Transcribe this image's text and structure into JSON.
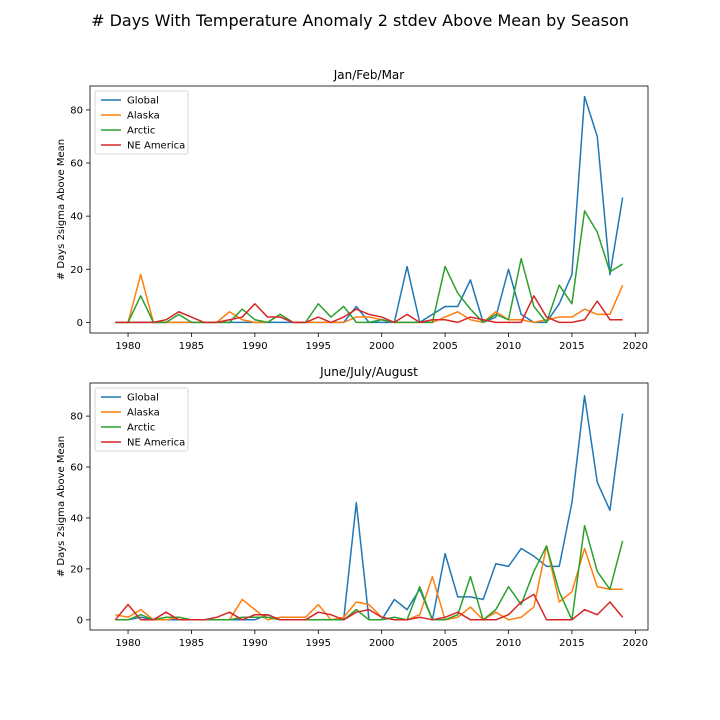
{
  "figure": {
    "suptitle": "# Days With Temperature Anomaly 2 stdev Above Mean by Season"
  },
  "chart_data": [
    {
      "type": "line",
      "title": "Jan/Feb/Mar",
      "xlabel": "",
      "ylabel": "# Days 2sigma Above Mean",
      "xlim": [
        1977,
        2021
      ],
      "ylim": [
        -4,
        89
      ],
      "xticks": [
        1980,
        1985,
        1990,
        1995,
        2000,
        2005,
        2010,
        2015,
        2020
      ],
      "yticks": [
        0,
        20,
        40,
        60,
        80
      ],
      "legend_position": "upper left",
      "x": [
        1979,
        1980,
        1981,
        1982,
        1983,
        1984,
        1985,
        1986,
        1987,
        1988,
        1989,
        1990,
        1991,
        1992,
        1993,
        1994,
        1995,
        1996,
        1997,
        1998,
        1999,
        2000,
        2001,
        2002,
        2003,
        2004,
        2005,
        2006,
        2007,
        2008,
        2009,
        2010,
        2011,
        2012,
        2013,
        2014,
        2015,
        2016,
        2017,
        2018,
        2019
      ],
      "series": [
        {
          "name": "Global",
          "color": "#1f77b4",
          "values": [
            0,
            0,
            0,
            0,
            0,
            0,
            0,
            0,
            0,
            0,
            0,
            0,
            0,
            0,
            0,
            0,
            0,
            0,
            0,
            6,
            0,
            0,
            0,
            21,
            0,
            3,
            6,
            6,
            16,
            0,
            2,
            20,
            3,
            0,
            0,
            7,
            18,
            85,
            70,
            18,
            47
          ]
        },
        {
          "name": "Alaska",
          "color": "#ff7f0e",
          "values": [
            0,
            0,
            18,
            0,
            0,
            0,
            0,
            0,
            0,
            4,
            1,
            0,
            0,
            3,
            0,
            0,
            0,
            0,
            0,
            2,
            2,
            1,
            0,
            0,
            0,
            0,
            2,
            4,
            1,
            0,
            4,
            1,
            1,
            0,
            1,
            2,
            2,
            5,
            3,
            3,
            14
          ]
        },
        {
          "name": "Arctic",
          "color": "#2ca02c",
          "values": [
            0,
            0,
            10,
            0,
            0,
            3,
            0,
            0,
            0,
            0,
            5,
            1,
            0,
            3,
            0,
            0,
            7,
            2,
            6,
            0,
            0,
            1,
            0,
            0,
            0,
            0,
            21,
            11,
            5,
            0,
            3,
            1,
            24,
            6,
            0,
            14,
            7,
            42,
            34,
            19,
            22
          ]
        },
        {
          "name": "NE America",
          "color": "#d62728",
          "values": [
            0,
            0,
            0,
            0,
            1,
            4,
            2,
            0,
            0,
            1,
            2,
            7,
            2,
            2,
            0,
            0,
            2,
            0,
            2,
            5,
            3,
            2,
            0,
            3,
            0,
            1,
            1,
            0,
            2,
            1,
            0,
            0,
            0,
            10,
            2,
            0,
            0,
            1,
            8,
            1,
            1
          ]
        }
      ]
    },
    {
      "type": "line",
      "title": "June/July/August",
      "xlabel": "",
      "ylabel": "# Days 2sigma Above Mean",
      "xlim": [
        1977,
        2021
      ],
      "ylim": [
        -4,
        93
      ],
      "xticks": [
        1980,
        1985,
        1990,
        1995,
        2000,
        2005,
        2010,
        2015,
        2020
      ],
      "yticks": [
        0,
        20,
        40,
        60,
        80
      ],
      "legend_position": "upper left",
      "x": [
        1979,
        1980,
        1981,
        1982,
        1983,
        1984,
        1985,
        1986,
        1987,
        1988,
        1989,
        1990,
        1991,
        1992,
        1993,
        1994,
        1995,
        1996,
        1997,
        1998,
        1999,
        2000,
        2001,
        2002,
        2003,
        2004,
        2005,
        2006,
        2007,
        2008,
        2009,
        2010,
        2011,
        2012,
        2013,
        2014,
        2015,
        2016,
        2017,
        2018,
        2019
      ],
      "series": [
        {
          "name": "Global",
          "color": "#1f77b4",
          "values": [
            0,
            0,
            1,
            0,
            0,
            0,
            0,
            0,
            0,
            0,
            0,
            0,
            2,
            0,
            0,
            0,
            0,
            0,
            0,
            46,
            0,
            0,
            8,
            4,
            12,
            0,
            26,
            9,
            9,
            8,
            22,
            21,
            28,
            25,
            21,
            21,
            46,
            88,
            54,
            43,
            81
          ]
        },
        {
          "name": "Alaska",
          "color": "#ff7f0e",
          "values": [
            2,
            1,
            4,
            0,
            0,
            1,
            0,
            0,
            0,
            0,
            8,
            4,
            0,
            1,
            1,
            1,
            6,
            0,
            1,
            7,
            6,
            1,
            0,
            0,
            2,
            17,
            0,
            1,
            5,
            0,
            3,
            0,
            1,
            5,
            29,
            7,
            11,
            28,
            13,
            12,
            12
          ]
        },
        {
          "name": "Arctic",
          "color": "#2ca02c",
          "values": [
            0,
            0,
            2,
            0,
            1,
            1,
            0,
            0,
            0,
            0,
            1,
            1,
            1,
            0,
            0,
            0,
            0,
            0,
            0,
            4,
            0,
            0,
            1,
            0,
            13,
            0,
            0,
            2,
            17,
            0,
            4,
            13,
            6,
            19,
            29,
            11,
            0,
            37,
            19,
            12,
            31
          ]
        },
        {
          "name": "NE America",
          "color": "#d62728",
          "values": [
            0,
            6,
            0,
            0,
            3,
            0,
            0,
            0,
            1,
            3,
            0,
            2,
            2,
            0,
            0,
            0,
            3,
            2,
            0,
            3,
            4,
            1,
            0,
            0,
            1,
            0,
            1,
            3,
            0,
            0,
            0,
            2,
            7,
            10,
            0,
            0,
            0,
            4,
            2,
            7,
            1
          ]
        }
      ]
    }
  ]
}
